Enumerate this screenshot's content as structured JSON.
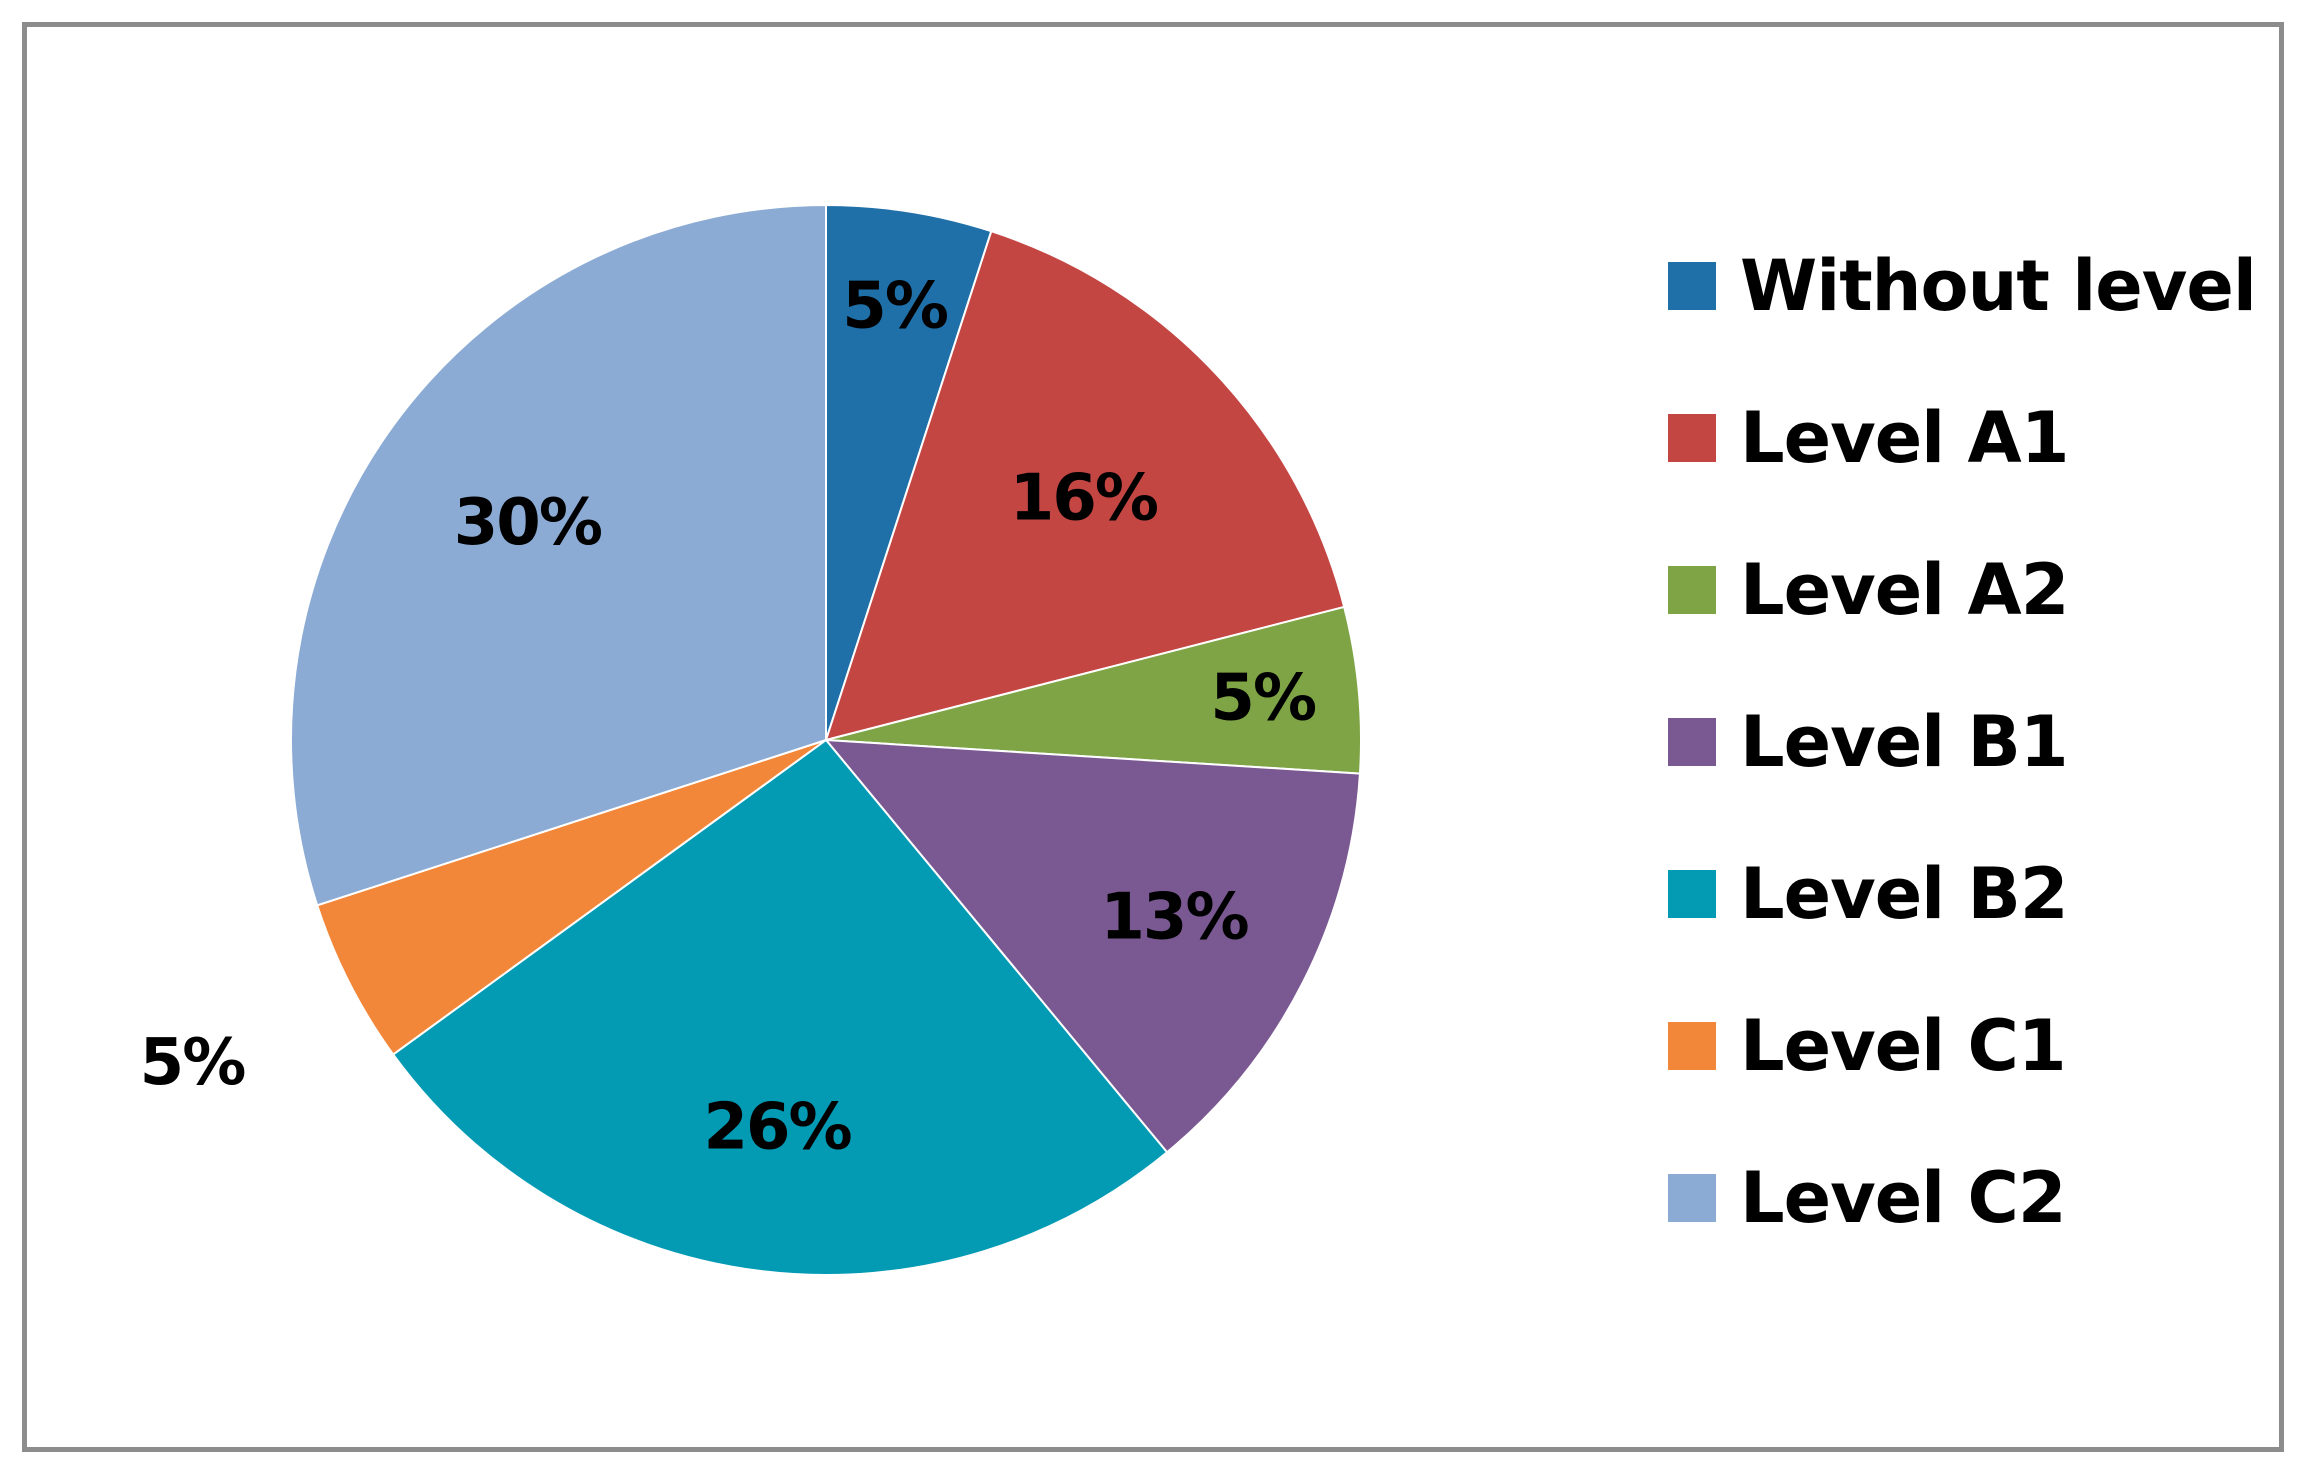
{
  "chart_data": {
    "type": "pie",
    "categories": [
      "Without level",
      "Level A1",
      "Level A2",
      "Level B1",
      "Level B2",
      "Level C1",
      "Level C2"
    ],
    "values": [
      5,
      16,
      5,
      13,
      26,
      5,
      30
    ],
    "labels": [
      "5%",
      "16%",
      "5%",
      "13%",
      "26%",
      "5%",
      "30%"
    ],
    "colors": [
      "#1f6fa8",
      "#c44643",
      "#7ea445",
      "#7a5891",
      "#039ab4",
      "#f38739",
      "#8babd4"
    ],
    "legend_placement": "right",
    "title": ""
  }
}
